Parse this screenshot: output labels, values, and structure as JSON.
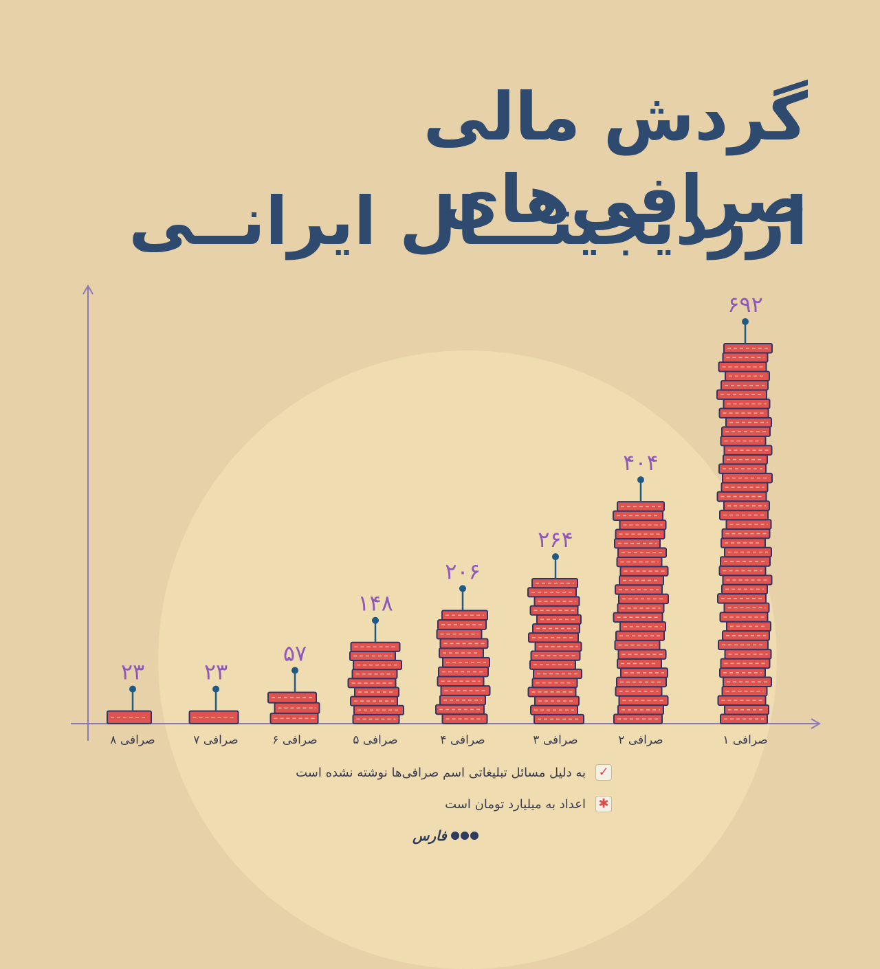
{
  "title": {
    "line1": "گردش مالی صرافی‌های",
    "line2": "ارزدیجیتـــال ایرانــی"
  },
  "chart_data": {
    "type": "bar",
    "categories": [
      "صرافی ۸",
      "صرافی ۷",
      "صرافی ۶",
      "صرافی ۵",
      "صرافی ۴",
      "صرافی ۳",
      "صرافی ۲",
      "صرافی ۱"
    ],
    "values": [
      23,
      23,
      57,
      148,
      206,
      264,
      404,
      692
    ],
    "value_labels": [
      "۲۳",
      "۲۳",
      "۵۷",
      "۱۴۸",
      "۲۰۶",
      "۲۶۴",
      "۴۰۴",
      "۶۹۲"
    ],
    "ylim": [
      0,
      692
    ]
  },
  "notes": [
    {
      "icon": "checkmark-icon",
      "text": "به دلیل مسائل تبلیغاتی اسم صرافی‌ها نوشته نشده است"
    },
    {
      "icon": "asterisk-icon",
      "text": "اعداد به میلیارد تومان است"
    }
  ],
  "logo": {
    "text": "فارس"
  },
  "colors": {
    "background": "#e6d1a8",
    "title": "#2e4a6e",
    "coin_fill": "#e0544f",
    "coin_outline": "#2e3466",
    "axis": "#8c7ab8",
    "value_label": "#8e58b8",
    "pin": "#1f5a85"
  }
}
